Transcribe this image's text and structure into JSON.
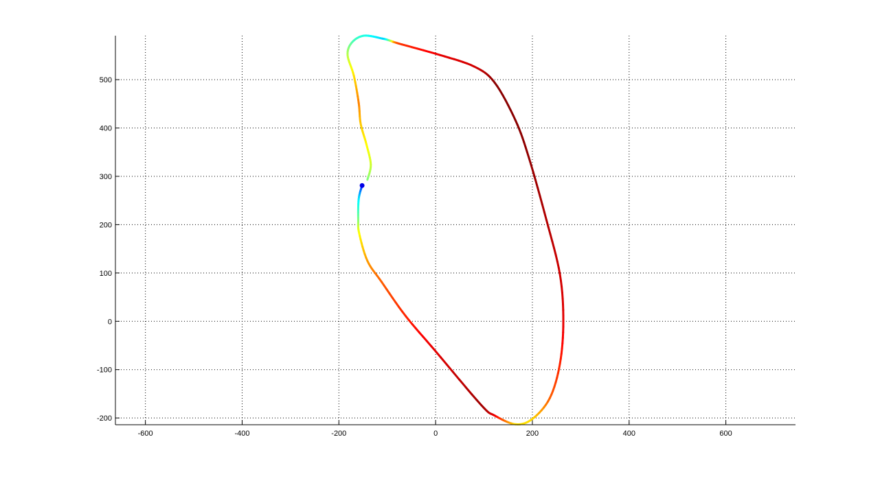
{
  "chart_data": {
    "type": "line",
    "title": "",
    "xlabel": "",
    "ylabel": "",
    "xlim": [
      -662,
      744
    ],
    "ylim": [
      -214,
      591
    ],
    "grid": true,
    "grid_style": "dotted",
    "colormap": "jet",
    "xticks": [
      -600,
      -400,
      -200,
      0,
      200,
      400,
      600
    ],
    "yticks": [
      -200,
      -100,
      0,
      100,
      200,
      300,
      400,
      500
    ],
    "xtick_labels": [
      "-600",
      "-400",
      "-200",
      "0",
      "200",
      "400",
      "600"
    ],
    "ytick_labels": [
      "-200",
      "-100",
      "0",
      "100",
      "200",
      "300",
      "400",
      "500"
    ],
    "series": [
      {
        "points": [
          {
            "x": -152,
            "y": 281,
            "c": 0.12
          },
          {
            "x": -159,
            "y": 253,
            "c": 0.35
          },
          {
            "x": -160,
            "y": 210,
            "c": 0.5
          },
          {
            "x": -158,
            "y": 182,
            "c": 0.62
          },
          {
            "x": -141,
            "y": 125,
            "c": 0.72
          },
          {
            "x": -112,
            "y": 82,
            "c": 0.78
          },
          {
            "x": -62,
            "y": 11,
            "c": 0.84
          },
          {
            "x": 0,
            "y": -62,
            "c": 0.9
          },
          {
            "x": 94,
            "y": -173,
            "c": 0.97
          },
          {
            "x": 122,
            "y": -195,
            "c": 0.9
          },
          {
            "x": 165,
            "y": -213,
            "c": 0.65
          },
          {
            "x": 200,
            "y": -202,
            "c": 0.66
          },
          {
            "x": 236,
            "y": -159,
            "c": 0.78
          },
          {
            "x": 257,
            "y": -88,
            "c": 0.84
          },
          {
            "x": 264,
            "y": 0,
            "c": 0.9
          },
          {
            "x": 257,
            "y": 97,
            "c": 0.92
          },
          {
            "x": 229,
            "y": 210,
            "c": 0.95
          },
          {
            "x": 193,
            "y": 338,
            "c": 0.98
          },
          {
            "x": 165,
            "y": 416,
            "c": 0.99
          },
          {
            "x": 122,
            "y": 494,
            "c": 0.99
          },
          {
            "x": 80,
            "y": 527,
            "c": 0.92
          },
          {
            "x": 9,
            "y": 551,
            "c": 0.9
          },
          {
            "x": -77,
            "y": 575,
            "c": 0.82
          },
          {
            "x": -95,
            "y": 581,
            "c": 0.55
          },
          {
            "x": -110,
            "y": 585,
            "c": 0.33
          },
          {
            "x": -148,
            "y": 591,
            "c": 0.4
          },
          {
            "x": -173,
            "y": 577,
            "c": 0.45
          },
          {
            "x": -182,
            "y": 551,
            "c": 0.55
          },
          {
            "x": -169,
            "y": 508,
            "c": 0.65
          },
          {
            "x": -159,
            "y": 452,
            "c": 0.75
          },
          {
            "x": -155,
            "y": 409,
            "c": 0.68
          },
          {
            "x": -143,
            "y": 366,
            "c": 0.63
          },
          {
            "x": -134,
            "y": 324,
            "c": 0.58
          },
          {
            "x": -141,
            "y": 293,
            "c": 0.5
          }
        ]
      }
    ]
  }
}
